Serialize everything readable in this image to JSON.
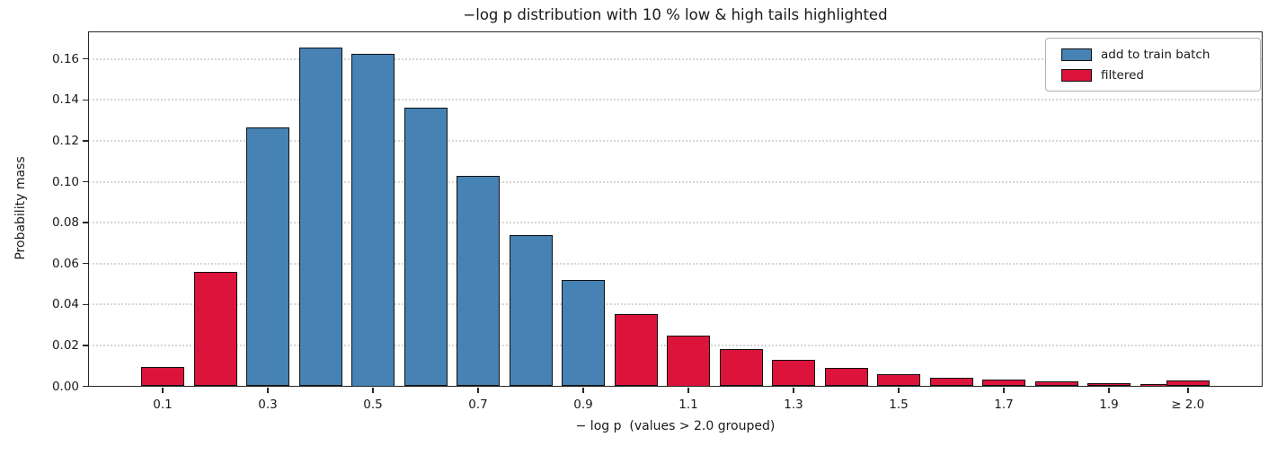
{
  "figure": {
    "title": "−log p distribution with 10 % low & high tails highlighted"
  },
  "chart_data": {
    "type": "bar",
    "title": "−log p distribution with 10 % low & high tails highlighted",
    "xlabel": "− log p  (values > 2.0 grouped)",
    "ylabel": "Probability mass",
    "bin_width": 0.1,
    "x": [
      0.1,
      0.2,
      0.3,
      0.4,
      0.5,
      0.6,
      0.7,
      0.8,
      0.9,
      1.0,
      1.1,
      1.2,
      1.3,
      1.4,
      1.5,
      1.6,
      1.7,
      1.8,
      1.9,
      2.0,
      2.05
    ],
    "values": [
      0.0095,
      0.056,
      0.1265,
      0.1655,
      0.1625,
      0.136,
      0.103,
      0.074,
      0.052,
      0.0355,
      0.025,
      0.018,
      0.013,
      0.0088,
      0.0058,
      0.0043,
      0.0032,
      0.0023,
      0.0016,
      0.0012,
      0.003
    ],
    "bar_series": [
      "filtered",
      "filtered",
      "add to train batch",
      "add to train batch",
      "add to train batch",
      "add to train batch",
      "add to train batch",
      "add to train batch",
      "add to train batch",
      "filtered",
      "filtered",
      "filtered",
      "filtered",
      "filtered",
      "filtered",
      "filtered",
      "filtered",
      "filtered",
      "filtered",
      "filtered",
      "filtered"
    ],
    "last_bin_note": "values > 2.0 grouped into the ≥ 2.0 bar plotted at x = 2.05",
    "xticks": [
      {
        "label": "0.1",
        "x": 0.1
      },
      {
        "label": "0.3",
        "x": 0.3
      },
      {
        "label": "0.5",
        "x": 0.5
      },
      {
        "label": "0.7",
        "x": 0.7
      },
      {
        "label": "0.9",
        "x": 0.9
      },
      {
        "label": "1.1",
        "x": 1.1
      },
      {
        "label": "1.3",
        "x": 1.3
      },
      {
        "label": "1.5",
        "x": 1.5
      },
      {
        "label": "1.7",
        "x": 1.7
      },
      {
        "label": "1.9",
        "x": 1.9
      },
      {
        "label": "≥ 2.0",
        "x": 2.05
      }
    ],
    "yticks": [
      {
        "label": "0.00",
        "value": 0.0
      },
      {
        "label": "0.02",
        "value": 0.02
      },
      {
        "label": "0.04",
        "value": 0.04
      },
      {
        "label": "0.06",
        "value": 0.06
      },
      {
        "label": "0.08",
        "value": 0.08
      },
      {
        "label": "0.10",
        "value": 0.1
      },
      {
        "label": "0.12",
        "value": 0.12
      },
      {
        "label": "0.14",
        "value": 0.14
      },
      {
        "label": "0.16",
        "value": 0.16
      }
    ],
    "xlim": [
      -0.042,
      2.192
    ],
    "ylim": [
      0,
      0.1735
    ],
    "grid": {
      "axis": "y",
      "style": "dotted",
      "color": "#d6d6d6"
    },
    "legend": {
      "position": "upper right",
      "items": [
        {
          "label": "add to train batch",
          "color": "#4682b4"
        },
        {
          "label": "filtered",
          "color": "#dc143c"
        }
      ]
    },
    "colors": {
      "train_blue": "#4682b4",
      "filtered_red": "#dc143c",
      "bar_edge": "#101010",
      "axis": "#262626"
    }
  }
}
